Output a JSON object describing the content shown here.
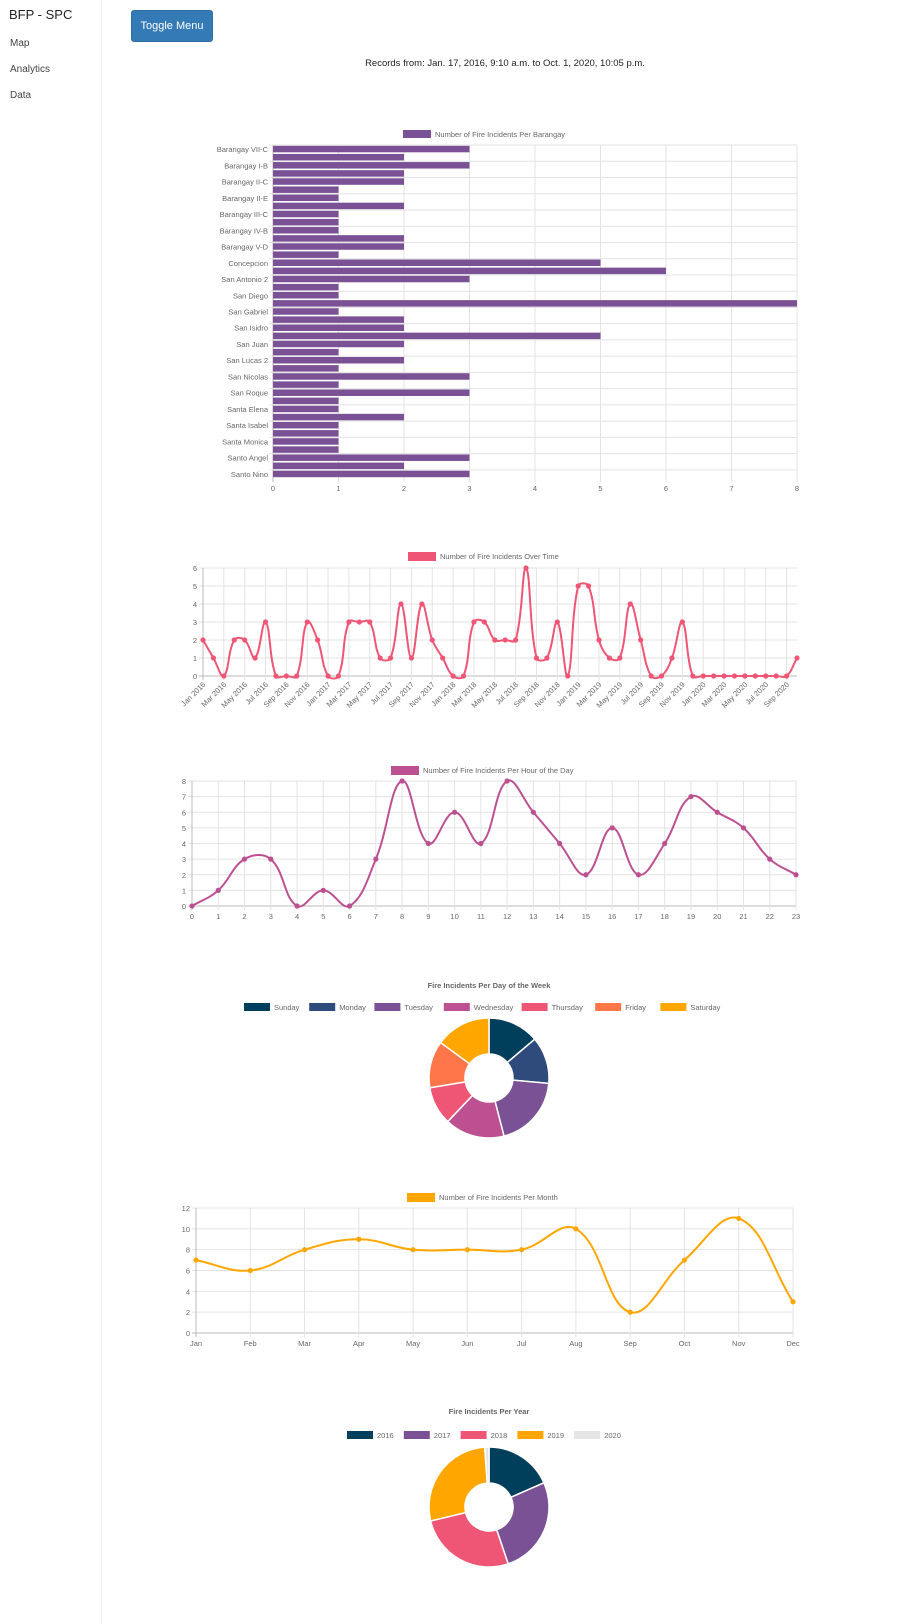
{
  "sidebar": {
    "brand": "BFP - SPC",
    "items": [
      {
        "label": "Map"
      },
      {
        "label": "Analytics"
      },
      {
        "label": "Data"
      }
    ]
  },
  "header": {
    "toggle_label": "Toggle Menu",
    "records_text": "Records from: Jan. 17, 2016, 9:10 a.m. to Oct. 1, 2020, 10:05 p.m."
  },
  "chart_data": [
    {
      "type": "bar",
      "orientation": "horizontal",
      "legend": "Number of Fire Incidents Per Barangay",
      "color": "#7a5195",
      "categories": [
        "Barangay VII-C",
        "",
        "Barangay I-B",
        "",
        "Barangay II-C",
        "",
        "Barangay II-E",
        "",
        "Barangay III-C",
        "",
        "Barangay IV-B",
        "",
        "Barangay V-D",
        "",
        "Concepcion",
        "",
        "San Antonio 2",
        "",
        "San Diego",
        "",
        "San Gabriel",
        "",
        "San Isidro",
        "",
        "San Juan",
        "",
        "San Lucas 2",
        "",
        "San Nicolas",
        "",
        "San Roque",
        "",
        "Santa Elena",
        "",
        "Santa Isabel",
        "",
        "Santa Monica",
        "",
        "Santo Angel",
        "",
        "Santo Nino"
      ],
      "values": [
        3,
        2,
        3,
        2,
        2,
        1,
        1,
        2,
        1,
        1,
        1,
        2,
        2,
        1,
        5,
        6,
        3,
        1,
        1,
        8,
        1,
        2,
        2,
        5,
        2,
        1,
        2,
        1,
        3,
        1,
        3,
        1,
        1,
        2,
        1,
        1,
        1,
        1,
        3,
        2,
        3
      ],
      "xlim": [
        0,
        8
      ],
      "x_ticks": [
        "0",
        "1",
        "2",
        "3",
        "4",
        "5",
        "6",
        "7",
        "8"
      ],
      "grid": true
    },
    {
      "type": "line",
      "legend": "Number of Fire Incidents Over Time",
      "color": "#ef5675",
      "categories": [
        "Jan 2016",
        "Feb 2016",
        "Mar 2016",
        "Apr 2016",
        "May 2016",
        "Jun 2016",
        "Jul 2016",
        "Aug 2016",
        "Sep 2016",
        "Oct 2016",
        "Nov 2016",
        "Dec 2016",
        "Jan 2017",
        "Feb 2017",
        "Mar 2017",
        "Apr 2017",
        "May 2017",
        "Jun 2017",
        "Jul 2017",
        "Aug 2017",
        "Sep 2017",
        "Oct 2017",
        "Nov 2017",
        "Dec 2017",
        "Jan 2018",
        "Feb 2018",
        "Mar 2018",
        "Apr 2018",
        "May 2018",
        "Jun 2018",
        "Jul 2018",
        "Aug 2018",
        "Sep 2018",
        "Oct 2018",
        "Nov 2018",
        "Dec 2018",
        "Jan 2019",
        "Feb 2019",
        "Mar 2019",
        "Apr 2019",
        "May 2019",
        "Jun 2019",
        "Jul 2019",
        "Aug 2019",
        "Sep 2019",
        "Oct 2019",
        "Nov 2019",
        "Dec 2019",
        "Jan 2020",
        "Feb 2020",
        "Mar 2020",
        "Apr 2020",
        "May 2020",
        "Jun 2020",
        "Jul 2020",
        "Aug 2020",
        "Sep 2020",
        "Oct 2020"
      ],
      "values": [
        2,
        1,
        0,
        2,
        2,
        1,
        3,
        0,
        0,
        0,
        3,
        2,
        0,
        0,
        3,
        3,
        3,
        1,
        1,
        4,
        1,
        4,
        2,
        1,
        0,
        0,
        3,
        3,
        2,
        2,
        2,
        6,
        1,
        1,
        3,
        0,
        5,
        5,
        2,
        1,
        1,
        4,
        2,
        0,
        0,
        1,
        3,
        0,
        0,
        0,
        0,
        0,
        0,
        0,
        0,
        0,
        0,
        1
      ],
      "ylim": [
        0,
        6
      ],
      "y_ticks": [
        "0",
        "1",
        "2",
        "3",
        "4",
        "5",
        "6"
      ],
      "grid": true
    },
    {
      "type": "line",
      "legend": "Number of Fire Incidents Per Hour of the Day",
      "color": "#bc5090",
      "categories": [
        "0",
        "1",
        "2",
        "3",
        "4",
        "5",
        "6",
        "7",
        "8",
        "9",
        "10",
        "11",
        "12",
        "13",
        "14",
        "15",
        "16",
        "17",
        "18",
        "19",
        "20",
        "21",
        "22",
        "23"
      ],
      "values": [
        0,
        1,
        3,
        3,
        0,
        1,
        0,
        3,
        8,
        4,
        6,
        4,
        8,
        6,
        4,
        2,
        5,
        2,
        4,
        7,
        6,
        5,
        3,
        2
      ],
      "ylim": [
        0,
        8
      ],
      "y_ticks": [
        "0",
        "1",
        "2",
        "3",
        "4",
        "5",
        "6",
        "7",
        "8"
      ],
      "grid": true
    },
    {
      "type": "pie",
      "variant": "doughnut",
      "title": "Fire Incidents Per Day of the Week",
      "categories": [
        "Sunday",
        "Monday",
        "Tuesday",
        "Wednesday",
        "Thursday",
        "Friday",
        "Saturday"
      ],
      "values": [
        12,
        11,
        17,
        14,
        9,
        11,
        13
      ],
      "colors": [
        "#003f5c",
        "#2f4b7c",
        "#7a5195",
        "#bc5090",
        "#ef5675",
        "#ff764a",
        "#ffa600"
      ],
      "legend_position": "top"
    },
    {
      "type": "line",
      "legend": "Number of Fire Incidents Per Month",
      "color": "#ffa600",
      "categories": [
        "Jan",
        "Feb",
        "Mar",
        "Apr",
        "May",
        "Jun",
        "Jul",
        "Aug",
        "Sep",
        "Oct",
        "Nov",
        "Dec"
      ],
      "values": [
        7,
        6,
        8,
        9,
        8,
        8,
        8,
        10,
        2,
        7,
        11,
        3
      ],
      "ylim": [
        0,
        12
      ],
      "y_ticks": [
        "0",
        "2",
        "4",
        "6",
        "8",
        "10",
        "12"
      ],
      "grid": true
    },
    {
      "type": "pie",
      "variant": "doughnut",
      "title": "Fire Incidents Per Year",
      "categories": [
        "2016",
        "2017",
        "2018",
        "2019",
        "2020"
      ],
      "values": [
        16,
        23,
        23,
        24,
        1
      ],
      "colors": [
        "#003f5c",
        "#7a5195",
        "#ef5675",
        "#ffa600",
        "#e5e5e5"
      ],
      "legend_position": "top"
    }
  ]
}
